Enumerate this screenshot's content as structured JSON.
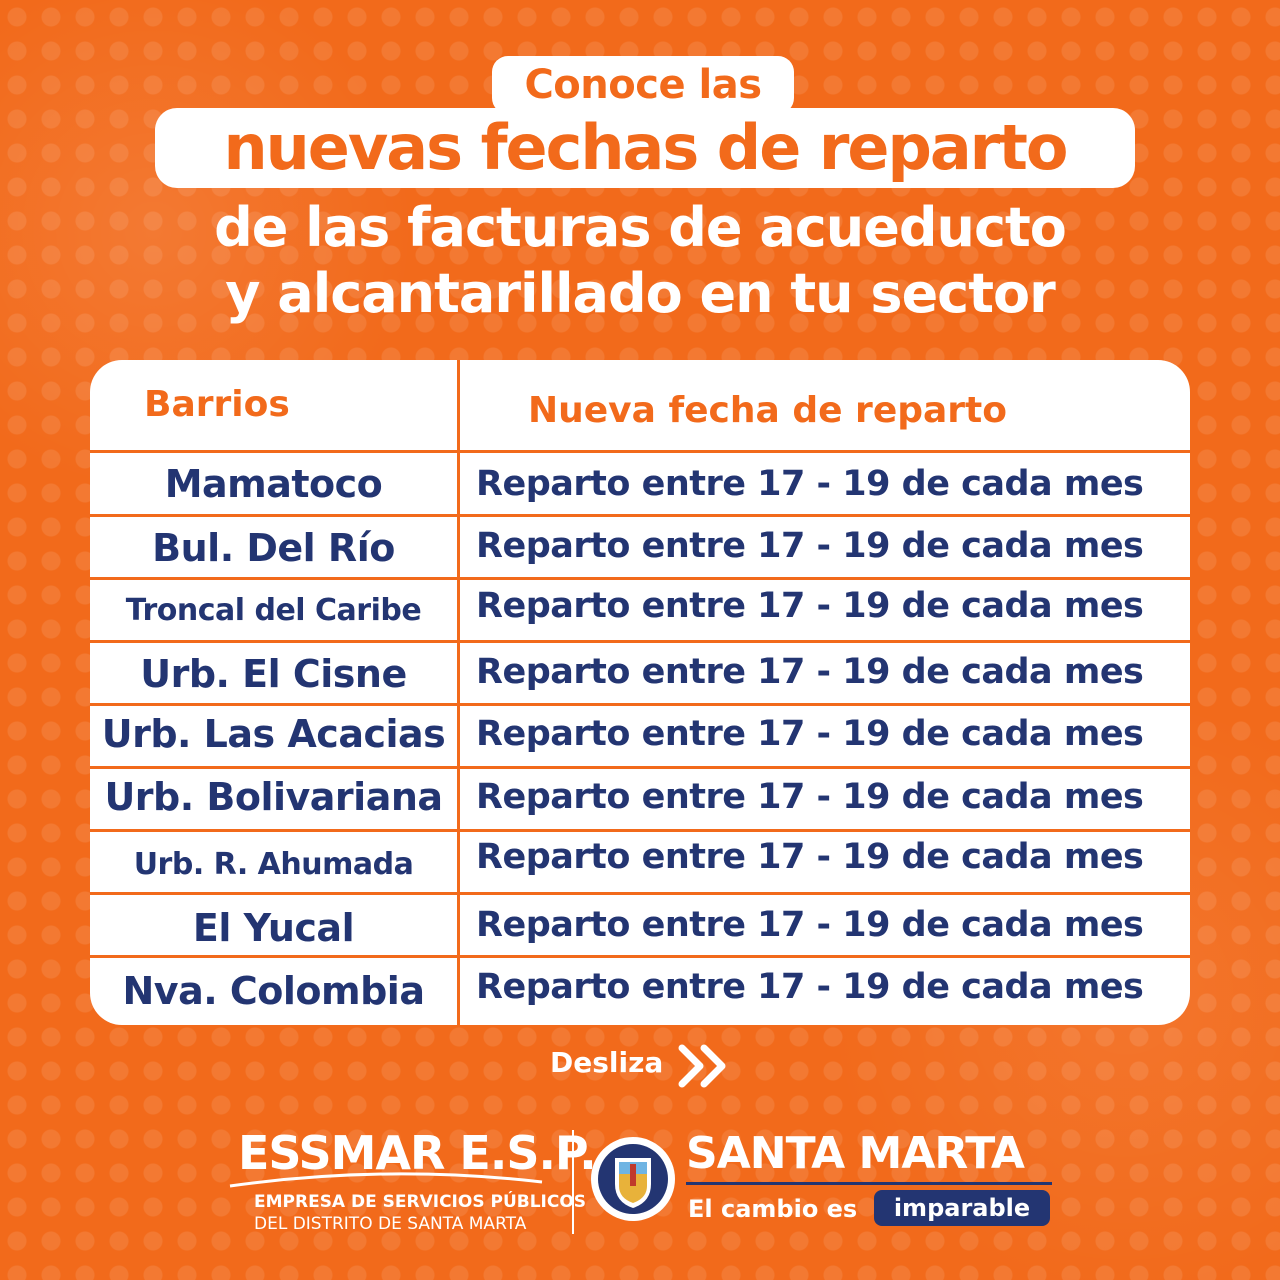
{
  "header": {
    "title_small": "Conoce las",
    "title_big": "nuevas fechas de reparto",
    "subtitle_line1": "de las facturas de acueducto",
    "subtitle_line2": "y alcantarillado en tu sector"
  },
  "table": {
    "col_barrios": "Barrios",
    "col_fecha": "Nueva fecha de reparto",
    "rows": [
      {
        "barrio": "Mamatoco",
        "fecha": "Reparto entre 17 - 19 de cada mes"
      },
      {
        "barrio": "Bul. Del Río",
        "fecha": "Reparto entre 17 - 19 de cada mes"
      },
      {
        "barrio": "Troncal del Caribe",
        "fecha": "Reparto entre 17 - 19 de cada mes"
      },
      {
        "barrio": "Urb. El Cisne",
        "fecha": "Reparto entre 17 - 19 de cada mes"
      },
      {
        "barrio": "Urb. Las Acacias",
        "fecha": "Reparto entre 17 - 19 de cada mes"
      },
      {
        "barrio": "Urb. Bolivariana",
        "fecha": "Reparto entre 17 - 19 de cada mes"
      },
      {
        "barrio": "Urb. R. Ahumada",
        "fecha": "Reparto entre 17 - 19 de cada mes"
      },
      {
        "barrio": "El Yucal",
        "fecha": "Reparto entre 17 - 19 de cada mes"
      },
      {
        "barrio": "Nva. Colombia",
        "fecha": "Reparto entre 17 - 19 de cada mes"
      }
    ]
  },
  "desliza": {
    "label": "Desliza",
    "icon": "double-chevron-right-icon"
  },
  "footer": {
    "essmar_name": "ESSMAR E.S.P.",
    "essmar_line1": "EMPRESA DE SERVICIOS PÚBLICOS",
    "essmar_line2": "DEL DISTRITO DE SANTA MARTA",
    "santa_marta": "SANTA MARTA",
    "slogan": "El cambio es",
    "slogan_badge": "imparable",
    "seal_icon": "city-seal-icon"
  },
  "colors": {
    "background": "#f26a1b",
    "accent_text": "#233572",
    "white": "#ffffff"
  }
}
